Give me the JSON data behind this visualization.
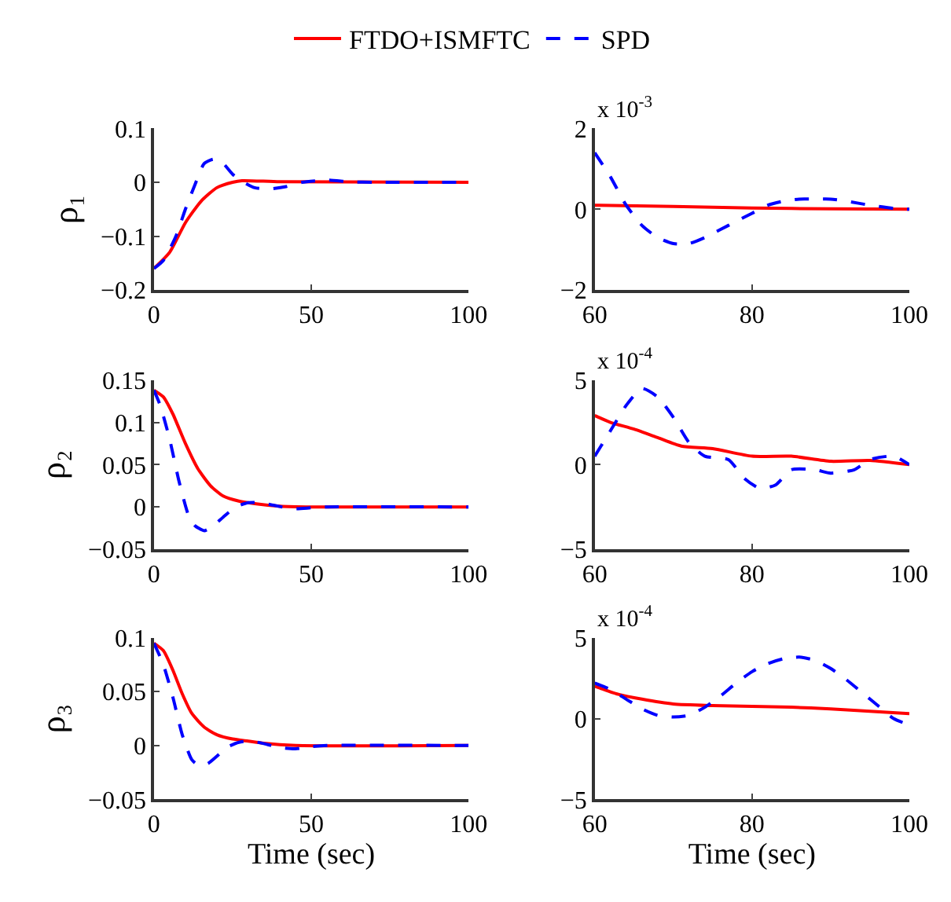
{
  "chart_data": [
    {
      "type": "line",
      "ylabel": "ρ₁",
      "legend": "top",
      "grid": false,
      "xlim": [
        0,
        100
      ],
      "xticks": [
        0,
        50,
        100
      ],
      "ylim": [
        -0.2,
        0.1
      ],
      "yticks": [
        -0.2,
        -0.1,
        0,
        0.1
      ],
      "series": [
        {
          "name": "FTDO+ISMFTC",
          "color": "#ff0000",
          "line_style": "solid",
          "x": [
            0,
            5,
            10,
            15,
            20,
            25,
            28,
            40,
            100
          ],
          "values": [
            -0.16,
            -0.13,
            -0.075,
            -0.035,
            -0.01,
            0.0,
            0.003,
            0.001,
            0
          ]
        },
        {
          "name": "SPD",
          "color": "#0000ff",
          "line_style": "dashed",
          "x": [
            0,
            3,
            7,
            10,
            13,
            16,
            19,
            22,
            25,
            28,
            32,
            37,
            42,
            47,
            55,
            62,
            70,
            100
          ],
          "values": [
            -0.16,
            -0.145,
            -0.1,
            -0.05,
            -0.005,
            0.035,
            0.043,
            0.035,
            0.015,
            0.002,
            -0.01,
            -0.012,
            -0.008,
            0,
            0.004,
            0.001,
            0,
            0
          ]
        }
      ]
    },
    {
      "type": "line",
      "grid": false,
      "xlim": [
        60,
        100
      ],
      "xticks": [
        60,
        80,
        100
      ],
      "ylim": [
        -2,
        2
      ],
      "yticks": [
        -2,
        0,
        2
      ],
      "annotations": [
        "x 10$^{-3}$"
      ],
      "series": [
        {
          "color": "#ff0000",
          "line_style": "solid",
          "x": [
            60,
            70,
            80,
            90,
            100
          ],
          "values": [
            0.1,
            0.07,
            0.03,
            0.01,
            0.0
          ]
        },
        {
          "color": "#0000ff",
          "line_style": "dashed",
          "x": [
            60,
            62,
            64,
            66,
            68,
            70,
            72,
            74,
            76,
            78,
            80,
            82,
            84,
            86,
            88,
            90,
            92,
            95,
            98,
            100
          ],
          "values": [
            1.4,
            0.8,
            0.1,
            -0.4,
            -0.7,
            -0.85,
            -0.85,
            -0.7,
            -0.5,
            -0.3,
            -0.1,
            0.1,
            0.2,
            0.25,
            0.25,
            0.25,
            0.2,
            0.1,
            0.02,
            0
          ]
        }
      ]
    },
    {
      "type": "line",
      "ylabel": "ρ₂",
      "grid": false,
      "xlim": [
        0,
        100
      ],
      "xticks": [
        0,
        50,
        100
      ],
      "ylim": [
        -0.05,
        0.15
      ],
      "yticks": [
        -0.05,
        0,
        0.05,
        0.1,
        0.15
      ],
      "series": [
        {
          "color": "#ff0000",
          "line_style": "solid",
          "x": [
            0,
            3,
            6,
            10,
            14,
            18,
            22,
            27,
            32,
            40,
            50,
            100
          ],
          "values": [
            0.138,
            0.13,
            0.11,
            0.075,
            0.045,
            0.025,
            0.013,
            0.007,
            0.004,
            0.001,
            0,
            0
          ]
        },
        {
          "color": "#0000ff",
          "line_style": "dashed",
          "x": [
            0,
            2,
            5,
            8,
            11,
            13,
            16,
            19,
            22,
            26,
            30,
            34,
            38,
            44,
            50,
            55,
            100
          ],
          "values": [
            0.138,
            0.12,
            0.08,
            0.03,
            -0.01,
            -0.022,
            -0.028,
            -0.022,
            -0.012,
            0.0,
            0.005,
            0.005,
            0.002,
            -0.002,
            -0.001,
            0,
            0
          ]
        }
      ]
    },
    {
      "type": "line",
      "grid": false,
      "xlim": [
        60,
        100
      ],
      "xticks": [
        60,
        80,
        100
      ],
      "ylim": [
        -5,
        5
      ],
      "yticks": [
        -5,
        0,
        5
      ],
      "annotations": [
        "x 10$^{-4}$"
      ],
      "series": [
        {
          "color": "#ff0000",
          "line_style": "solid",
          "x": [
            60,
            62,
            65,
            68,
            71,
            75,
            80,
            85,
            90,
            95,
            100
          ],
          "values": [
            2.9,
            2.5,
            2.1,
            1.6,
            1.1,
            0.95,
            0.5,
            0.5,
            0.2,
            0.25,
            0
          ]
        },
        {
          "color": "#0000ff",
          "line_style": "dashed",
          "x": [
            60,
            62,
            64,
            66,
            68,
            70,
            72,
            74,
            77,
            79,
            81,
            83,
            85,
            88,
            90,
            93,
            95,
            98,
            100
          ],
          "values": [
            0.5,
            2.0,
            3.5,
            4.5,
            4.0,
            2.8,
            1.3,
            0.5,
            0.3,
            -0.8,
            -1.4,
            -1.2,
            -0.3,
            -0.3,
            -0.5,
            -0.3,
            0.3,
            0.5,
            0
          ]
        }
      ]
    },
    {
      "type": "line",
      "ylabel": "ρ₃",
      "xlabel": "Time (sec)",
      "grid": false,
      "xlim": [
        0,
        100
      ],
      "xticks": [
        0,
        50,
        100
      ],
      "ylim": [
        -0.05,
        0.1
      ],
      "yticks": [
        -0.05,
        0,
        0.05,
        0.1
      ],
      "series": [
        {
          "color": "#ff0000",
          "line_style": "solid",
          "x": [
            0,
            3,
            6,
            9,
            12,
            16,
            20,
            25,
            30,
            35,
            45,
            100
          ],
          "values": [
            0.095,
            0.088,
            0.07,
            0.048,
            0.03,
            0.017,
            0.01,
            0.006,
            0.004,
            0.002,
            0,
            0
          ]
        },
        {
          "color": "#0000ff",
          "line_style": "dashed",
          "x": [
            0,
            3,
            6,
            9,
            12,
            14,
            17,
            20,
            23,
            27,
            31,
            36,
            40,
            45,
            50,
            55,
            100
          ],
          "values": [
            0.095,
            0.075,
            0.045,
            0.01,
            -0.013,
            -0.018,
            -0.017,
            -0.01,
            -0.002,
            0.003,
            0.004,
            0.001,
            -0.002,
            -0.003,
            -0.001,
            0,
            0
          ]
        }
      ]
    },
    {
      "type": "line",
      "xlabel": "Time (sec)",
      "grid": false,
      "xlim": [
        60,
        100
      ],
      "xticks": [
        60,
        80,
        100
      ],
      "ylim": [
        -5,
        5
      ],
      "yticks": [
        -5,
        0,
        5
      ],
      "annotations": [
        "x 10$^{-4}$"
      ],
      "series": [
        {
          "color": "#ff0000",
          "line_style": "solid",
          "x": [
            60,
            63,
            66,
            70,
            75,
            80,
            85,
            90,
            95,
            100
          ],
          "values": [
            2.0,
            1.5,
            1.2,
            0.9,
            0.8,
            0.75,
            0.7,
            0.6,
            0.45,
            0.3
          ]
        },
        {
          "color": "#0000ff",
          "line_style": "dashed",
          "x": [
            60,
            62,
            64,
            66,
            68,
            70,
            72,
            74,
            76,
            78,
            80,
            82,
            84,
            86,
            88,
            90,
            92,
            94,
            96,
            98,
            100
          ],
          "values": [
            2.2,
            1.8,
            1.2,
            0.6,
            0.2,
            0.1,
            0.2,
            0.7,
            1.4,
            2.2,
            2.9,
            3.4,
            3.7,
            3.8,
            3.6,
            3.1,
            2.4,
            1.6,
            0.8,
            0.0,
            -0.4
          ]
        }
      ]
    }
  ]
}
